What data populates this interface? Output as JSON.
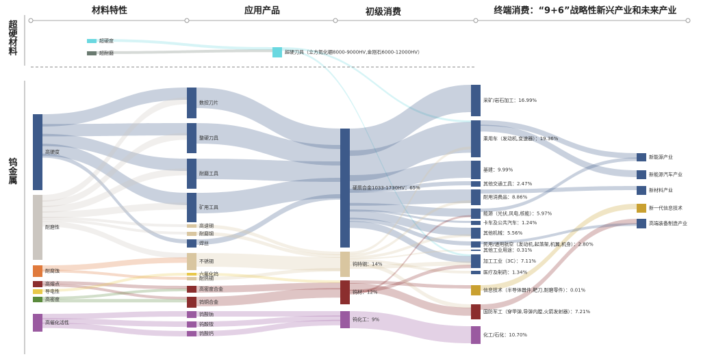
{
  "header": {
    "columns": [
      "材料特性",
      "应用产品",
      "初级消费",
      "终端消费：“9+6”战略性新兴产业和未来产业"
    ]
  },
  "side_labels": [
    "超硬材料",
    "钨金属"
  ],
  "nodes": [
    {
      "label": "超硬度"
    },
    {
      "label": "超耐磨"
    },
    {
      "label": "高硬度"
    },
    {
      "label": "耐磨性"
    },
    {
      "label": "耐腐蚀"
    },
    {
      "label": "高熔点"
    },
    {
      "label": "导电性"
    },
    {
      "label": "高密度"
    },
    {
      "label": "高催化活性"
    },
    {
      "label": "超硬刀具（立方氮化硼8000-9000HV,金刚石6000-12000HV）"
    },
    {
      "label": "数控刀片"
    },
    {
      "label": "整硬刀具"
    },
    {
      "label": "耐磨工具"
    },
    {
      "label": "矿用工具"
    },
    {
      "label": "高速钢"
    },
    {
      "label": "耐磨钢"
    },
    {
      "label": "焊丝"
    },
    {
      "label": "不锈钢"
    },
    {
      "label": "六氟化钨"
    },
    {
      "label": "耐热钢"
    },
    {
      "label": "高密度合金"
    },
    {
      "label": "钨铜合金"
    },
    {
      "label": "钨酸钠"
    },
    {
      "label": "钨酸铵"
    },
    {
      "label": "钨酸钙"
    },
    {
      "label": "硬质合金1033-1730HV：65%"
    },
    {
      "label": "钨特钢：14%"
    },
    {
      "label": "钨材：12%"
    },
    {
      "label": "钨化工：9%"
    },
    {
      "label": "采矿/岩石加工：16.99%"
    },
    {
      "label": "乘用车（发动机,变速器）：19.36%"
    },
    {
      "label": "基建：9.99%"
    },
    {
      "label": "其他交通工具：2.47%"
    },
    {
      "label": "耐用消费品：8.86%"
    },
    {
      "label": "能源（光伏,风电,核能）：5.97%"
    },
    {
      "label": "卡车及公共汽车：1.24%"
    },
    {
      "label": "其他机械：5.56%"
    },
    {
      "label": "民用/通用航空（发动机,起落架,机翼,机身）：2.80%"
    },
    {
      "label": "其他工业用途：0.31%"
    },
    {
      "label": "加工工业（3C）：7.11%"
    },
    {
      "label": "医疗及制药：1.34%"
    },
    {
      "label": "信息技术（半导体器件,靶刀,耐磨零件）：0.01%"
    },
    {
      "label": "国防军工（穿甲弹,导弹内膛,火箭发射器）：7.21%"
    },
    {
      "label": "化工/石化：10.70%"
    },
    {
      "label": "新能源产业"
    },
    {
      "label": "新能源汽车产业"
    },
    {
      "label": "新材料产业"
    },
    {
      "label": "新一代信息技术"
    },
    {
      "label": "高端装备制造产业"
    }
  ]
}
